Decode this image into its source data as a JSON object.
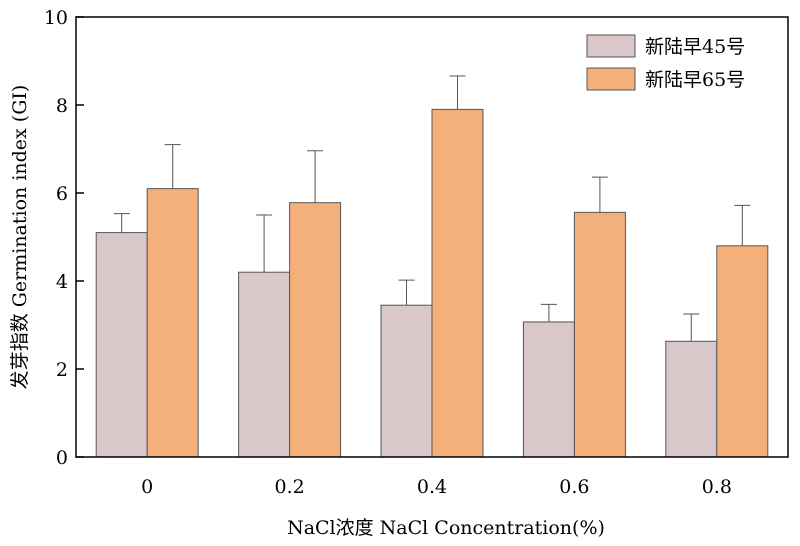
{
  "chart_data": {
    "type": "bar",
    "xlabel": "NaCl浓度 NaCl Concentration(%)",
    "ylabel": "发芽指数 Germination index (GI)",
    "categories": [
      "0",
      "0.2",
      "0.4",
      "0.6",
      "0.8"
    ],
    "ylim": [
      0,
      10
    ],
    "yticks": [
      "0",
      "2",
      "4",
      "6",
      "8",
      "10"
    ],
    "grid": false,
    "legend_position": "top-right",
    "series": [
      {
        "name": "新陆早45号",
        "color": "#d9c7c9",
        "values": [
          5.1,
          4.2,
          3.45,
          3.07,
          2.63
        ],
        "errors": [
          0.43,
          1.3,
          0.57,
          0.4,
          0.62
        ]
      },
      {
        "name": "新陆早65号",
        "color": "#f4b07a",
        "values": [
          6.1,
          5.78,
          7.9,
          5.56,
          4.8
        ],
        "errors": [
          1.0,
          1.18,
          0.76,
          0.8,
          0.92
        ]
      }
    ]
  }
}
